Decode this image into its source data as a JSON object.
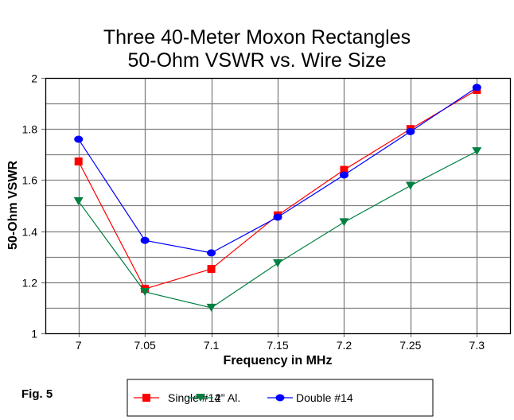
{
  "chart_data": {
    "type": "line",
    "title": "Three 40-Meter Moxon Rectangles",
    "subtitle": "50-Ohm VSWR vs. Wire Size",
    "xlabel": "Frequency in MHz",
    "ylabel": "50-Ohm VSWR",
    "x": [
      7,
      7.05,
      7.1,
      7.15,
      7.2,
      7.25,
      7.3
    ],
    "x_tick_labels": [
      "7",
      "7.05",
      "7.1",
      "7.15",
      "7.2",
      "7.25",
      "7.3"
    ],
    "y_tick_labels": [
      "1",
      "1.2",
      "1.4",
      "1.6",
      "1.8",
      "2"
    ],
    "xlim": [
      6.975,
      7.325
    ],
    "ylim": [
      1,
      2
    ],
    "y_minor_grid_step": 0.1,
    "grid": true,
    "legend_position": "bottom-center",
    "series": [
      {
        "name": "Single #14",
        "color": "#ff0000",
        "marker": "square",
        "values": [
          1.673,
          1.174,
          1.252,
          1.462,
          1.64,
          1.8,
          1.953
        ]
      },
      {
        "name": "2\" Al.",
        "color": "#008040",
        "marker": "triangle-down",
        "values": [
          1.517,
          1.162,
          1.1,
          1.274,
          1.435,
          1.578,
          1.713
        ]
      },
      {
        "name": "Double #14",
        "color": "#0000ff",
        "marker": "circle",
        "values": [
          1.76,
          1.364,
          1.315,
          1.455,
          1.62,
          1.79,
          1.963
        ]
      }
    ],
    "annotation": "Fig. 5"
  }
}
